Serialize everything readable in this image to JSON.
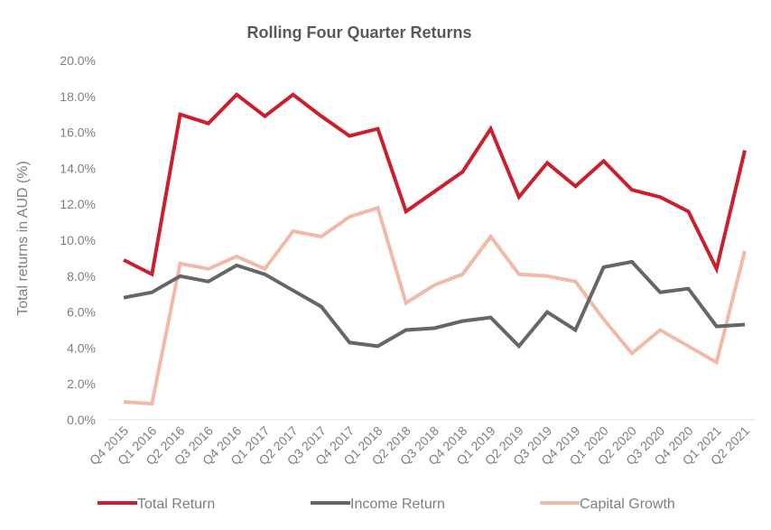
{
  "chart_data": {
    "type": "line",
    "title": "Rolling Four Quarter Returns",
    "ylabel": "Total returns in AUD (%)",
    "xlabel": "",
    "ylim": [
      0,
      20
    ],
    "yticks": [
      "0.0%",
      "2.0%",
      "4.0%",
      "6.0%",
      "8.0%",
      "10.0%",
      "12.0%",
      "14.0%",
      "16.0%",
      "18.0%",
      "20.0%"
    ],
    "grid": false,
    "legend": "bottom",
    "categories": [
      "Q4 2015",
      "Q1 2016",
      "Q2 2016",
      "Q3 2016",
      "Q4 2016",
      "Q1 2017",
      "Q2 2017",
      "Q3 2017",
      "Q4 2017",
      "Q1 2018",
      "Q2 2018",
      "Q3 2018",
      "Q4 2018",
      "Q1 2019",
      "Q2 2019",
      "Q3 2019",
      "Q4 2019",
      "Q1 2020",
      "Q2 2020",
      "Q3 2020",
      "Q4 2020",
      "Q1 2021",
      "Q2 2021"
    ],
    "series": [
      {
        "name": "Total Return",
        "color": "#cc1f2d",
        "values": [
          8.9,
          8.1,
          17.0,
          16.5,
          18.1,
          16.9,
          18.1,
          16.9,
          15.8,
          16.2,
          11.6,
          12.7,
          13.8,
          16.2,
          12.4,
          14.3,
          13.0,
          14.4,
          12.8,
          12.4,
          11.6,
          8.4,
          15.0
        ]
      },
      {
        "name": "Income Return",
        "color": "#666666",
        "values": [
          6.8,
          7.1,
          8.0,
          7.7,
          8.6,
          8.1,
          7.2,
          6.3,
          4.3,
          4.1,
          5.0,
          5.1,
          5.5,
          5.7,
          4.1,
          6.0,
          5.0,
          8.5,
          8.8,
          7.1,
          7.3,
          5.2,
          5.3
        ]
      },
      {
        "name": "Capital Growth",
        "color": "#f2b9a8",
        "values": [
          1.0,
          0.9,
          8.7,
          8.4,
          9.1,
          8.4,
          10.5,
          10.2,
          11.3,
          11.8,
          6.5,
          7.5,
          8.1,
          10.2,
          8.1,
          8.0,
          7.7,
          5.6,
          3.7,
          5.0,
          4.1,
          3.2,
          9.4
        ]
      }
    ]
  }
}
